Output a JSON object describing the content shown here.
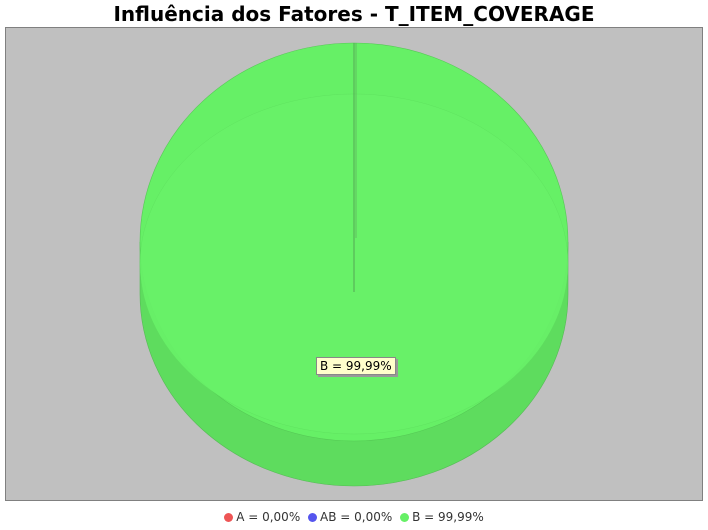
{
  "chart_data": {
    "type": "pie",
    "title": "Influência dos Fatores - T_ITEM_COVERAGE",
    "slices": [
      {
        "label": "A",
        "value": 0.0,
        "display": "A = 0,00%",
        "color": "#ee5555"
      },
      {
        "label": "AB",
        "value": 0.0,
        "display": "AB = 0,00%",
        "color": "#5555ee"
      },
      {
        "label": "B",
        "value": 99.99,
        "display": "B = 99,99%",
        "color": "#66f066"
      }
    ],
    "data_labels": [
      "B = 99,99%"
    ],
    "legend_position": "bottom",
    "style": "3d",
    "background_color": "#c0c0c0"
  }
}
